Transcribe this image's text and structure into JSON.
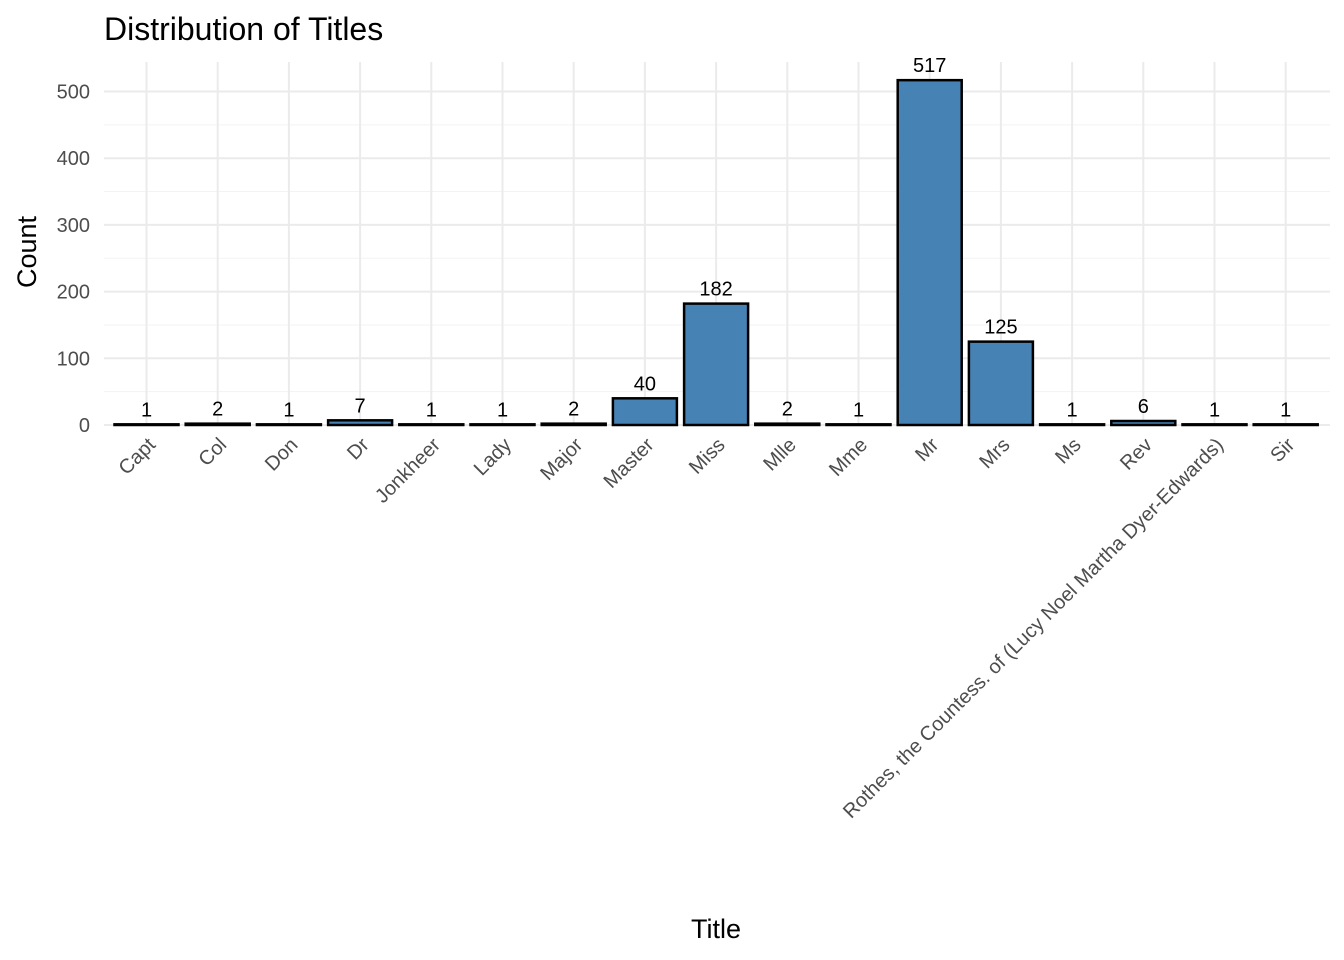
{
  "chart_data": {
    "type": "bar",
    "title": "Distribution of Titles",
    "xlabel": "Title",
    "ylabel": "Count",
    "categories": [
      "Capt",
      "Col",
      "Don",
      "Dr",
      "Jonkheer",
      "Lady",
      "Major",
      "Master",
      "Miss",
      "Mlle",
      "Mme",
      "Mr",
      "Mrs",
      "Ms",
      "Rev",
      "Rothes, the Countess. of (Lucy Noel Martha Dyer-Edwards)",
      "Sir"
    ],
    "values": [
      1,
      2,
      1,
      7,
      1,
      1,
      2,
      40,
      182,
      2,
      1,
      517,
      125,
      1,
      6,
      1,
      1
    ],
    "data_labels": [
      "1",
      "2",
      "1",
      "7",
      "1",
      "1",
      "2",
      "40",
      "182",
      "2",
      "1",
      "517",
      "125",
      "1",
      "6",
      "1",
      "1"
    ],
    "y_ticks": [
      0,
      100,
      200,
      300,
      400,
      500
    ],
    "ylim": [
      0,
      543
    ],
    "bar_color": "#4682b4",
    "bar_outline": "#000000",
    "grid": true,
    "legend": "none"
  }
}
